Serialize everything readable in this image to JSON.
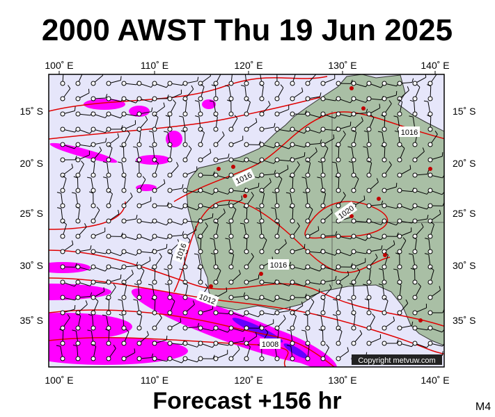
{
  "header": {
    "title": "2000 AWST Thu 19 Jun 2025"
  },
  "map": {
    "lon_labels": [
      "100˚ E",
      "110˚ E",
      "120˚ E",
      "130˚ E",
      "140˚ E"
    ],
    "lat_labels": [
      "15˚ S",
      "20˚ S",
      "25˚ S",
      "30˚ S",
      "35˚ S"
    ],
    "isobar_labels": [
      "1016",
      "1016",
      "1020",
      "1016",
      "1016",
      "1012",
      "1008"
    ],
    "copyright": "Copyright metvuw.com"
  },
  "footer": {
    "forecast": "Forecast +156 hr",
    "model": "M4"
  }
}
